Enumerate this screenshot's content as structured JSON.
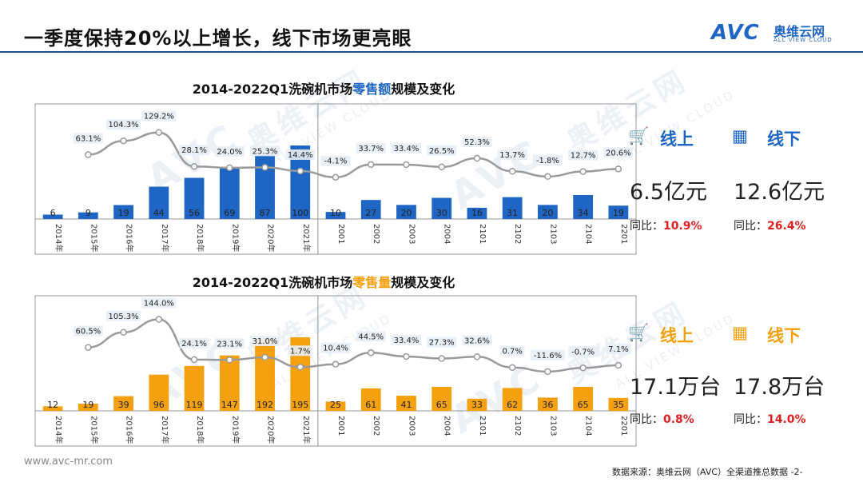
{
  "header": {
    "title": "一季度保持20%以上增长，线下市场更亮眼",
    "logo_mark": "AVC",
    "logo_cn": "奥维云网",
    "logo_en": "ALL VIEW CLOUD"
  },
  "watermark": {
    "mark": "AVC",
    "cn": "奥维云网",
    "en": "ALL VIEW CLOUD"
  },
  "chart_data": [
    {
      "type": "bar",
      "title_prefix": "2014-2022Q1洗碗机市场",
      "title_highlight": "零售额",
      "title_suffix": "规模及变化",
      "categories": [
        "2014年",
        "2015年",
        "2016年",
        "2017年",
        "2018年",
        "2019年",
        "2020年",
        "2021年",
        "2001",
        "2002",
        "2003",
        "2004",
        "2101",
        "2102",
        "2103",
        "2104",
        "2201"
      ],
      "series": [
        {
          "name": "零售额",
          "values": [
            6,
            9,
            19,
            44,
            56,
            69,
            87,
            100,
            10,
            27,
            20,
            30,
            16,
            31,
            20,
            34,
            19
          ]
        },
        {
          "name": "同比",
          "type": "line",
          "values": [
            null,
            63.1,
            104.3,
            129.2,
            28.1,
            24.0,
            25.3,
            14.4,
            -4.1,
            33.7,
            33.4,
            26.5,
            52.3,
            13.7,
            -1.8,
            12.7,
            20.6
          ],
          "labels": [
            "",
            "63.1%",
            "104.3%",
            "129.2%",
            "28.1%",
            "24.0%",
            "25.3%",
            "14.4%",
            "-4.1%",
            "33.7%",
            "33.4%",
            "26.5%",
            "52.3%",
            "13.7%",
            "-1.8%",
            "12.7%",
            "20.6%"
          ]
        }
      ],
      "color": "#1f66c4",
      "bar_max_annual": 100,
      "bar_max_quarter": 34
    },
    {
      "type": "bar",
      "title_prefix": "2014-2022Q1洗碗机市场",
      "title_highlight": "零售量",
      "title_suffix": "规模及变化",
      "categories": [
        "2014年",
        "2015年",
        "2016年",
        "2017年",
        "2018年",
        "2019年",
        "2020年",
        "2021年",
        "2001",
        "2002",
        "2003",
        "2004",
        "2101",
        "2102",
        "2103",
        "2104",
        "2201"
      ],
      "series": [
        {
          "name": "零售量",
          "values": [
            12,
            19,
            39,
            96,
            119,
            147,
            192,
            195,
            25,
            61,
            41,
            65,
            33,
            62,
            36,
            65,
            35
          ]
        },
        {
          "name": "同比",
          "type": "line",
          "values": [
            null,
            60.5,
            105.3,
            144.0,
            24.1,
            23.1,
            31.0,
            1.7,
            10.4,
            44.5,
            33.4,
            27.3,
            32.6,
            0.7,
            -11.6,
            -0.7,
            7.1
          ],
          "labels": [
            "",
            "60.5%",
            "105.3%",
            "144.0%",
            "24.1%",
            "23.1%",
            "31.0%",
            "1.7%",
            "10.4%",
            "44.5%",
            "33.4%",
            "27.3%",
            "32.6%",
            "0.7%",
            "-11.6%",
            "-0.7%",
            "7.1%"
          ]
        }
      ],
      "color": "#f5a00f",
      "bar_max_annual": 195,
      "bar_max_quarter": 65
    }
  ],
  "panels": [
    {
      "color": "#1f66c4",
      "online_label": "线上",
      "offline_label": "线下",
      "online_value": "6.5亿元",
      "offline_value": "12.6亿元",
      "yoy_prefix": "同比：",
      "online_yoy": "10.9%",
      "offline_yoy": "26.4%",
      "online_icon": "cart-icon",
      "offline_icon": "store-icon"
    },
    {
      "color": "#f5a00f",
      "online_label": "线上",
      "offline_label": "线下",
      "online_value": "17.1万台",
      "offline_value": "17.8万台",
      "yoy_prefix": "同比：",
      "online_yoy": "0.8%",
      "offline_yoy": "14.0%",
      "online_icon": "cart-icon",
      "offline_icon": "store-icon"
    }
  ],
  "footer": {
    "website": "www.avc-mr.com",
    "source": "数据来源：奥维云网（AVC）全渠道推总数据",
    "page": "-2-"
  }
}
